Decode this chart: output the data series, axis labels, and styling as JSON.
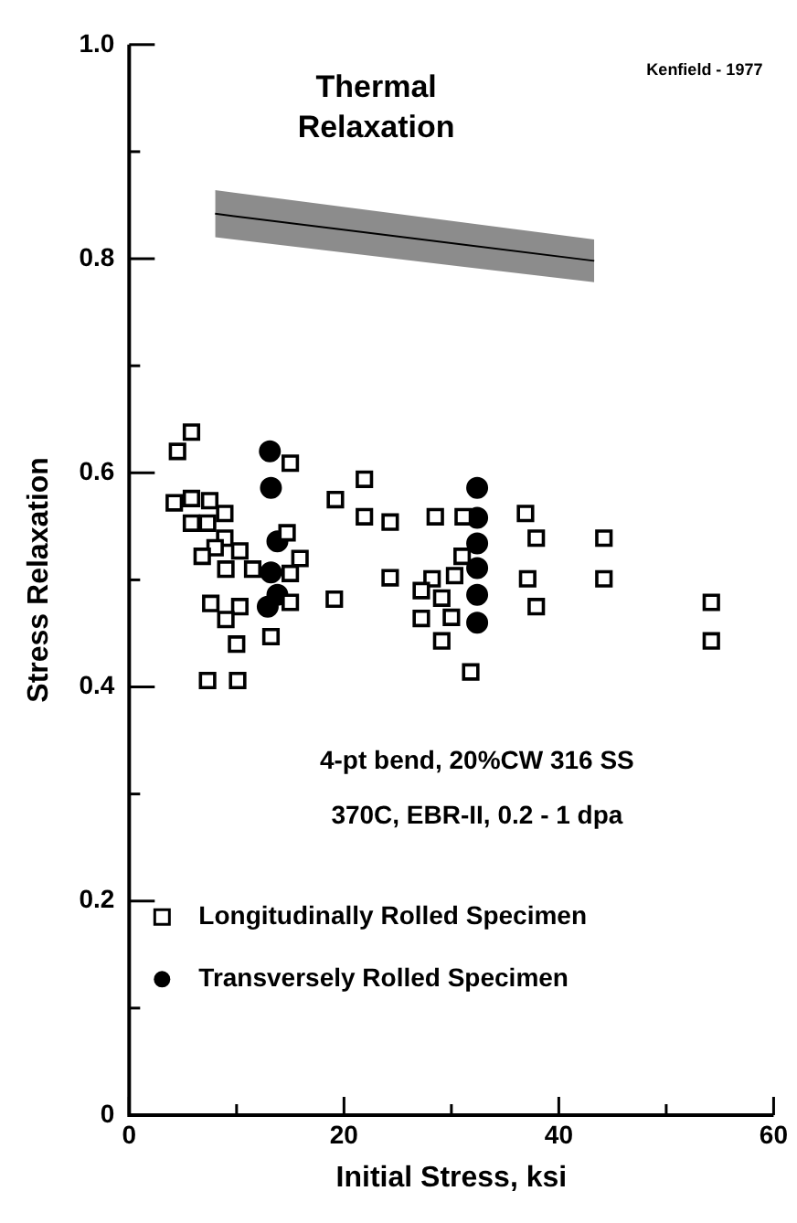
{
  "chart_data": {
    "type": "scatter",
    "xlabel": "Initial Stress, ksi",
    "ylabel": "Stress Relaxation",
    "xlim": [
      0,
      60
    ],
    "ylim": [
      0,
      1
    ],
    "xticks": [
      0,
      {
        "value": 10,
        "label": null
      },
      20,
      {
        "value": 30,
        "label": null
      },
      40,
      {
        "value": 50,
        "label": null
      },
      60
    ],
    "yticks": [
      0,
      {
        "value": 0.1,
        "label": null
      },
      0.2,
      {
        "value": 0.3,
        "label": null
      },
      0.4,
      {
        "value": 0.5,
        "label": null
      },
      0.6,
      {
        "value": 0.7,
        "label": null
      },
      0.8,
      {
        "value": 0.9,
        "label": null
      },
      {
        "value": 1,
        "label": "1.0"
      }
    ],
    "grid": false,
    "legend": "bottom left",
    "annotations": [
      "Kenfield - 1977",
      "Thermal Relaxation",
      "4-pt bend, 20%CW 316 SS",
      "370C, EBR-II, 0.2 - 1 dpa"
    ],
    "series": [
      {
        "name": "Longitudinally Rolled Specimen",
        "color": "#000000",
        "marker": "square",
        "x": [
          5.8,
          4.5,
          15,
          4.2,
          5.8,
          7.5,
          5.8,
          7.3,
          8.9,
          8.9,
          8,
          10.3,
          6.8,
          9,
          11.5,
          14.7,
          15.9,
          15,
          15,
          7.6,
          10.3,
          9,
          10,
          13.2,
          7.3,
          10.1,
          19.2,
          21.9,
          21.9,
          24.3,
          24.3,
          19.1,
          28.5,
          31.1,
          36.9,
          37.9,
          44.2,
          37.1,
          44.2,
          37.9,
          54.2,
          54.2,
          31.8,
          31,
          30.3,
          28.2,
          29.1,
          30,
          29.1,
          27.2,
          27.2
        ],
        "values": [
          0.638,
          0.62,
          0.609,
          0.572,
          0.576,
          0.574,
          0.553,
          0.553,
          0.562,
          0.539,
          0.53,
          0.527,
          0.522,
          0.51,
          0.51,
          0.544,
          0.52,
          0.506,
          0.479,
          0.478,
          0.475,
          0.463,
          0.44,
          0.447,
          0.406,
          0.406,
          0.575,
          0.594,
          0.559,
          0.554,
          0.502,
          0.482,
          0.559,
          0.559,
          0.562,
          0.539,
          0.539,
          0.501,
          0.501,
          0.475,
          0.479,
          0.443,
          0.414,
          0.522,
          0.504,
          0.501,
          0.483,
          0.465,
          0.443,
          0.49,
          0.464
        ]
      },
      {
        "name": "Transversely Rolled Specimen",
        "color": "#000000",
        "marker": "circle",
        "x": [
          13.1,
          13.2,
          13.8,
          13.2,
          13.8,
          12.9,
          32.4,
          32.4,
          32.4,
          32.4,
          32.4,
          32.4
        ],
        "values": [
          0.62,
          0.586,
          0.536,
          0.507,
          0.486,
          0.475,
          0.586,
          0.558,
          0.534,
          0.511,
          0.486,
          0.46
        ]
      },
      {
        "type": "line",
        "color": "#000000",
        "x": [
          8,
          43.3
        ],
        "values": [
          0.842,
          0.798
        ],
        "lower": [
          0.82,
          0.778
        ],
        "upper": [
          0.864,
          0.818
        ]
      }
    ]
  }
}
